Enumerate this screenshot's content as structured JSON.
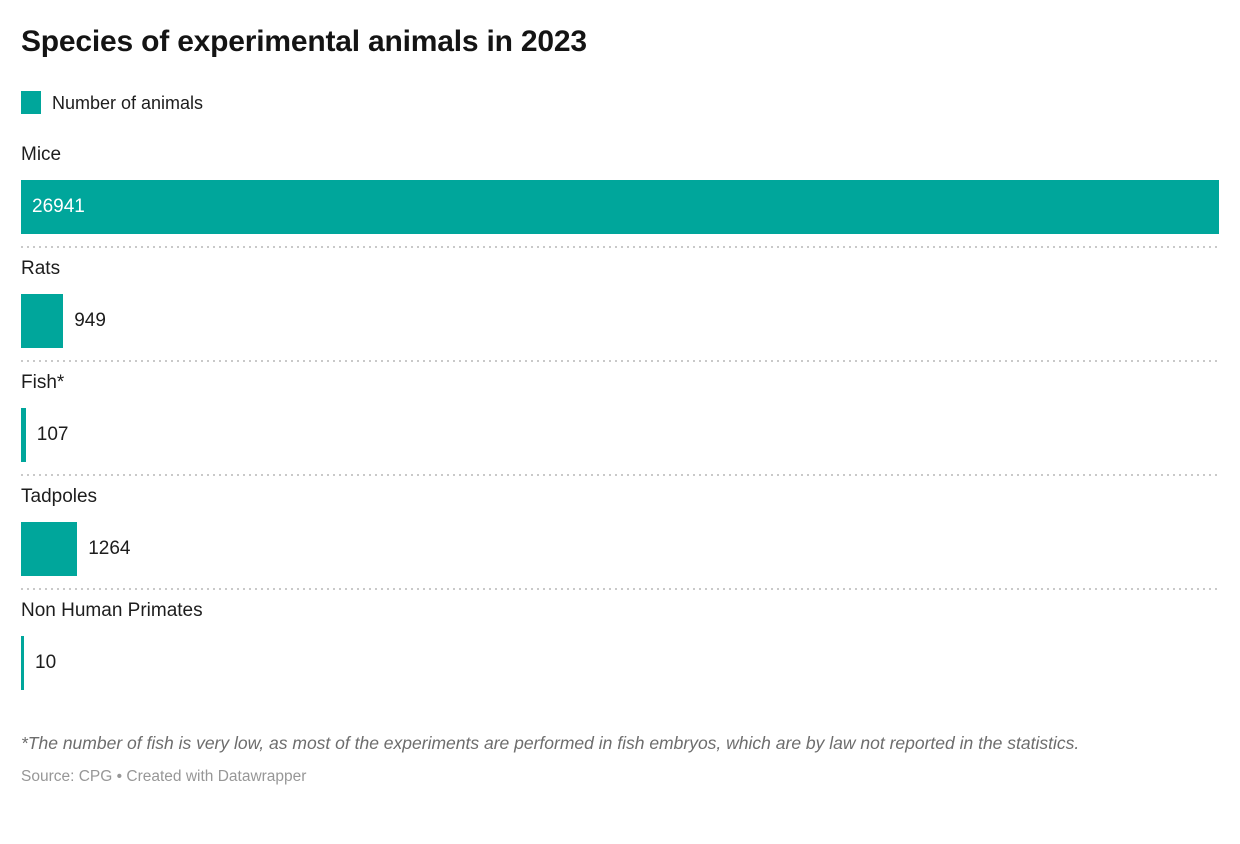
{
  "title": "Species of experimental animals in 2023",
  "legend": {
    "label": "Number of animals"
  },
  "colors": {
    "bar": "#00a69b",
    "value_inside": "#ffffff",
    "value_outside": "#1d1d1d",
    "divider": "#c9c9c9",
    "footnote": "#6d6d6d",
    "source": "#979797"
  },
  "chart_data": {
    "type": "bar",
    "orientation": "horizontal",
    "title": "Species of experimental animals in 2023",
    "legend_label": "Number of animals",
    "categories": [
      "Mice",
      "Rats",
      "Fish*",
      "Tadpoles",
      "Non Human Primates"
    ],
    "values": [
      26941,
      949,
      107,
      1264,
      10
    ],
    "max_value": 26941,
    "value_labels": [
      "26941",
      "949",
      "107",
      "1264",
      "10"
    ],
    "grid": false,
    "legend_position": "top-left",
    "row_dividers": "dotted"
  },
  "footnote": "*The number of fish is very low, as most of the experiments are performed in fish embryos, which are by law not reported in the statistics.",
  "source": {
    "prefix": "Source:",
    "name": "CPG",
    "separator": "•",
    "credit": "Created with Datawrapper"
  }
}
